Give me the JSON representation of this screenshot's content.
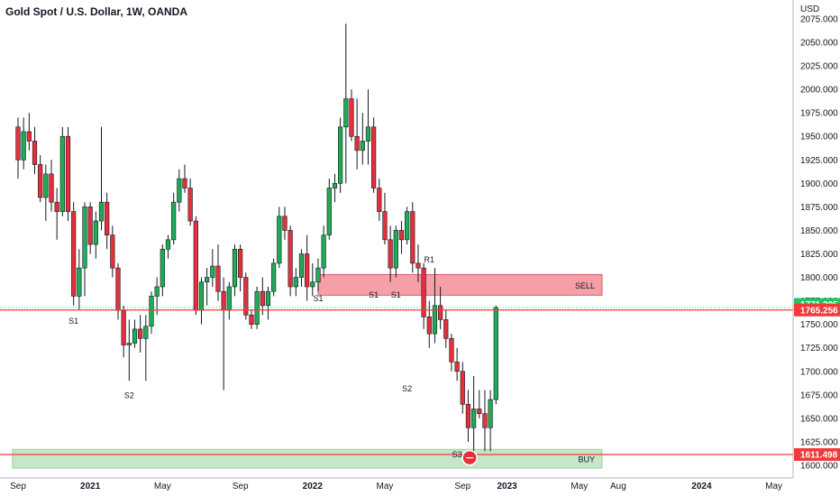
{
  "header": {
    "title": "Gold Spot / U.S. Dollar, 1W, OANDA"
  },
  "chart_data": {
    "type": "candlestick",
    "symbol": "Gold Spot / U.S. Dollar",
    "interval": "1W",
    "source": "OANDA",
    "currency": "USD",
    "y_ticks": [
      1600,
      1625,
      1650,
      1675,
      1700,
      1725,
      1750,
      1775,
      1800,
      1825,
      1850,
      1875,
      1900,
      1925,
      1950,
      1975,
      2000,
      2025,
      2050,
      2075
    ],
    "y_tick_labels": [
      "1600.000",
      "1625.000",
      "1650.000",
      "1675.000",
      "1700.000",
      "1725.000",
      "1750.000",
      "1775.000",
      "1800.000",
      "1825.000",
      "1850.000",
      "1875.000",
      "1900.000",
      "1925.000",
      "1950.000",
      "1975.000",
      "2000.000",
      "2025.000",
      "2050.000",
      "2075.000"
    ],
    "ylim": [
      1597,
      2090
    ],
    "x_ticks": [
      "Sep",
      "2021",
      "May",
      "Sep",
      "2022",
      "May",
      "Sep",
      "2023",
      "May",
      "Aug",
      "2024",
      "May"
    ],
    "x_tick_weeks": [
      0,
      13,
      26,
      40,
      53,
      66,
      80,
      88,
      101,
      108,
      123,
      136
    ],
    "price_labels": [
      {
        "value": 1771.295,
        "text": "1771.295",
        "color": "#22c55e"
      },
      {
        "value": 1765.256,
        "text": "1765.256",
        "color": "#ef3b3b"
      },
      {
        "value": 1611.498,
        "text": "1611.498",
        "color": "#ef3b3b"
      }
    ],
    "horizontal_lines": [
      {
        "value": 1765.256,
        "color": "#ef3b3b"
      },
      {
        "value": 1611.498,
        "color": "#ef3b3b"
      }
    ],
    "zones": [
      {
        "label": "SELL",
        "from": 1781,
        "to": 1803,
        "start_week": 54,
        "color": "#f4a0a6",
        "border": "#e05a66"
      },
      {
        "label": "BUY",
        "from": 1597,
        "to": 1617,
        "start_week": -1,
        "color": "#c6e6c8",
        "border": "#9fd3a2"
      }
    ],
    "annotations": [
      {
        "text": "S1",
        "week": 10,
        "price": 1762,
        "pos": "below"
      },
      {
        "text": "S2",
        "week": 20,
        "price": 1683,
        "pos": "below"
      },
      {
        "text": "S1",
        "week": 54,
        "price": 1786,
        "pos": "below"
      },
      {
        "text": "S1",
        "week": 64,
        "price": 1790,
        "pos": "below"
      },
      {
        "text": "S1",
        "week": 68,
        "price": 1790,
        "pos": "below"
      },
      {
        "text": "R1",
        "week": 74,
        "price": 1810,
        "pos": "above"
      },
      {
        "text": "S2",
        "week": 70,
        "price": 1690,
        "pos": "below"
      },
      {
        "text": "S3",
        "week": 79,
        "price": 1620,
        "pos": "below"
      }
    ],
    "candles": [
      [
        1960,
        1970,
        1905,
        1925
      ],
      [
        1925,
        1970,
        1915,
        1955
      ],
      [
        1955,
        1975,
        1935,
        1945
      ],
      [
        1945,
        1960,
        1910,
        1920
      ],
      [
        1920,
        1930,
        1880,
        1885
      ],
      [
        1885,
        1920,
        1860,
        1910
      ],
      [
        1910,
        1925,
        1870,
        1880
      ],
      [
        1880,
        1895,
        1840,
        1870
      ],
      [
        1870,
        1960,
        1865,
        1950
      ],
      [
        1950,
        1960,
        1860,
        1870
      ],
      [
        1870,
        1880,
        1770,
        1780
      ],
      [
        1780,
        1830,
        1765,
        1810
      ],
      [
        1810,
        1880,
        1780,
        1875
      ],
      [
        1875,
        1880,
        1825,
        1835
      ],
      [
        1835,
        1870,
        1820,
        1860
      ],
      [
        1860,
        1960,
        1850,
        1880
      ],
      [
        1880,
        1890,
        1830,
        1845
      ],
      [
        1845,
        1855,
        1800,
        1810
      ],
      [
        1810,
        1815,
        1755,
        1765
      ],
      [
        1765,
        1770,
        1715,
        1728
      ],
      [
        1728,
        1755,
        1690,
        1730
      ],
      [
        1730,
        1755,
        1725,
        1745
      ],
      [
        1745,
        1760,
        1720,
        1735
      ],
      [
        1735,
        1760,
        1690,
        1748
      ],
      [
        1748,
        1785,
        1740,
        1780
      ],
      [
        1780,
        1800,
        1760,
        1790
      ],
      [
        1790,
        1835,
        1780,
        1830
      ],
      [
        1830,
        1845,
        1820,
        1840
      ],
      [
        1840,
        1890,
        1835,
        1880
      ],
      [
        1880,
        1915,
        1870,
        1905
      ],
      [
        1905,
        1920,
        1890,
        1895
      ],
      [
        1895,
        1905,
        1855,
        1860
      ],
      [
        1860,
        1865,
        1760,
        1765
      ],
      [
        1765,
        1800,
        1750,
        1795
      ],
      [
        1795,
        1810,
        1770,
        1800
      ],
      [
        1800,
        1830,
        1790,
        1812
      ],
      [
        1812,
        1835,
        1775,
        1785
      ],
      [
        1785,
        1800,
        1680,
        1765
      ],
      [
        1765,
        1795,
        1755,
        1790
      ],
      [
        1790,
        1835,
        1780,
        1830
      ],
      [
        1830,
        1835,
        1785,
        1800
      ],
      [
        1800,
        1805,
        1755,
        1760
      ],
      [
        1760,
        1765,
        1745,
        1750
      ],
      [
        1750,
        1790,
        1745,
        1785
      ],
      [
        1785,
        1800,
        1760,
        1770
      ],
      [
        1770,
        1790,
        1755,
        1785
      ],
      [
        1785,
        1820,
        1780,
        1815
      ],
      [
        1815,
        1875,
        1810,
        1865
      ],
      [
        1865,
        1875,
        1840,
        1850
      ],
      [
        1850,
        1855,
        1780,
        1790
      ],
      [
        1790,
        1810,
        1780,
        1800
      ],
      [
        1800,
        1830,
        1790,
        1825
      ],
      [
        1825,
        1845,
        1775,
        1790
      ],
      [
        1790,
        1815,
        1780,
        1795
      ],
      [
        1795,
        1820,
        1785,
        1810
      ],
      [
        1810,
        1855,
        1800,
        1845
      ],
      [
        1845,
        1905,
        1840,
        1895
      ],
      [
        1895,
        1910,
        1880,
        1900
      ],
      [
        1900,
        1970,
        1890,
        1960
      ],
      [
        1960,
        2070,
        1900,
        1990
      ],
      [
        1990,
        2000,
        1945,
        1950
      ],
      [
        1950,
        1990,
        1915,
        1935
      ],
      [
        1935,
        1975,
        1920,
        1945
      ],
      [
        1945,
        2000,
        1920,
        1960
      ],
      [
        1960,
        1970,
        1890,
        1895
      ],
      [
        1895,
        1905,
        1860,
        1870
      ],
      [
        1870,
        1890,
        1835,
        1840
      ],
      [
        1840,
        1855,
        1795,
        1810
      ],
      [
        1810,
        1855,
        1800,
        1850
      ],
      [
        1850,
        1860,
        1825,
        1840
      ],
      [
        1840,
        1875,
        1835,
        1870
      ],
      [
        1870,
        1880,
        1805,
        1815
      ],
      [
        1815,
        1835,
        1795,
        1810
      ],
      [
        1810,
        1815,
        1745,
        1758
      ],
      [
        1758,
        1775,
        1725,
        1740
      ],
      [
        1740,
        1810,
        1730,
        1770
      ],
      [
        1770,
        1790,
        1745,
        1755
      ],
      [
        1755,
        1765,
        1725,
        1735
      ],
      [
        1735,
        1740,
        1700,
        1710
      ],
      [
        1710,
        1725,
        1690,
        1700
      ],
      [
        1700,
        1710,
        1655,
        1665
      ],
      [
        1665,
        1680,
        1625,
        1640
      ],
      [
        1640,
        1695,
        1615,
        1660
      ],
      [
        1660,
        1680,
        1650,
        1655
      ],
      [
        1655,
        1680,
        1615,
        1640
      ],
      [
        1640,
        1680,
        1615,
        1670
      ],
      [
        1670,
        1770,
        1665,
        1768
      ]
    ],
    "candle_colors": {
      "up": "#22ab56",
      "down": "#e5303a",
      "wick": "#131722"
    }
  }
}
